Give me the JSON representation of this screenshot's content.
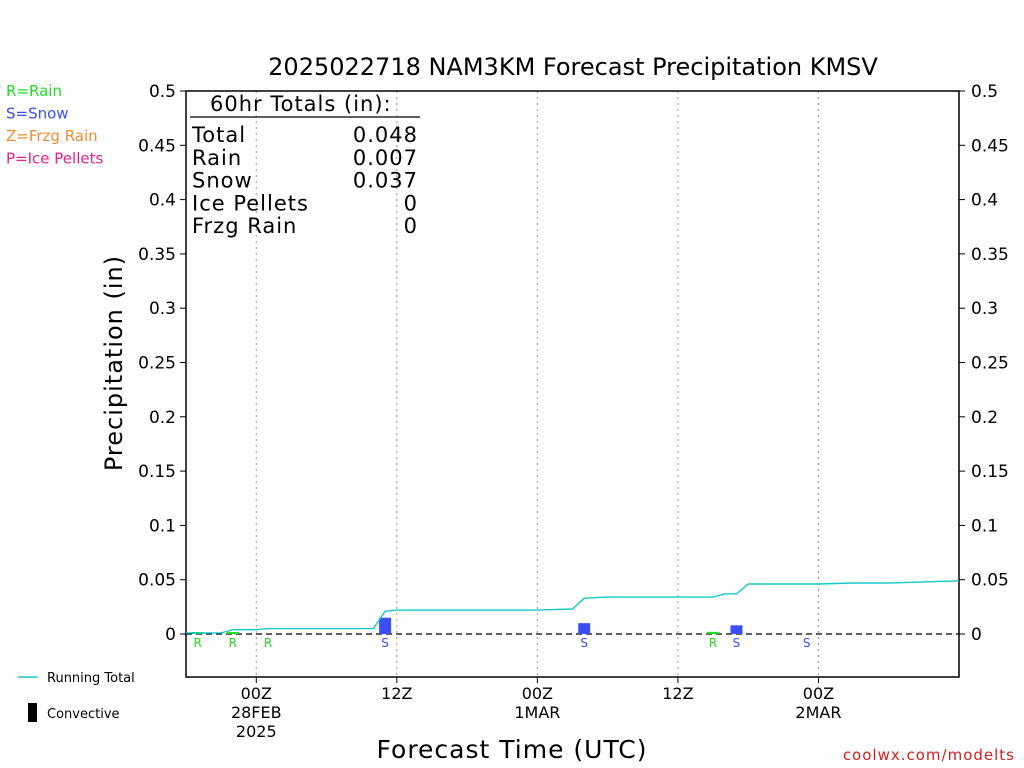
{
  "chart_data": {
    "type": "bar",
    "title": "2025022718 NAM3KM Forecast Precipitation KMSV",
    "xlabel": "Forecast Time (UTC)",
    "ylabel": "Precipitation (in)",
    "ylim": [
      0,
      0.5
    ],
    "xlim": [
      -6,
      60
    ],
    "y_ticks": [
      "0",
      "0.05",
      "0.1",
      "0.15",
      "0.2",
      "0.25",
      "0.3",
      "0.35",
      "0.4",
      "0.45",
      "0.5"
    ],
    "x_ticks": [
      {
        "hour": 0,
        "lines": [
          "00Z",
          "28FEB",
          "2025"
        ]
      },
      {
        "hour": 12,
        "lines": [
          "12Z"
        ]
      },
      {
        "hour": 24,
        "lines": [
          "00Z",
          "1MAR"
        ]
      },
      {
        "hour": 36,
        "lines": [
          "12Z"
        ]
      },
      {
        "hour": 48,
        "lines": [
          "00Z",
          "2MAR"
        ]
      }
    ],
    "grid": "vertical-dotted",
    "ptype_legend": [
      {
        "code": "R",
        "text": "R=Rain",
        "color": "#22dd22"
      },
      {
        "code": "S",
        "text": "S=Snow",
        "color": "#3a4ff0"
      },
      {
        "code": "Z",
        "text": "Z=Frzg Rain",
        "color": "#f08a30"
      },
      {
        "code": "P",
        "text": "P=Ice Pellets",
        "color": "#e8208a"
      }
    ],
    "bars": [
      {
        "hour": -5,
        "value": 0.001,
        "type": "R"
      },
      {
        "hour": -2,
        "value": 0.001,
        "type": "R"
      },
      {
        "hour": 11,
        "value": 0.015,
        "type": "S"
      },
      {
        "hour": 28,
        "value": 0.01,
        "type": "S"
      },
      {
        "hour": 39,
        "value": 0.002,
        "type": "R"
      },
      {
        "hour": 41,
        "value": 0.008,
        "type": "S"
      }
    ],
    "ptype_markers": [
      {
        "hour": -5,
        "code": "R"
      },
      {
        "hour": -2,
        "code": "R"
      },
      {
        "hour": 1,
        "code": "R"
      },
      {
        "hour": 11,
        "code": "S"
      },
      {
        "hour": 28,
        "code": "S"
      },
      {
        "hour": 39,
        "code": "R"
      },
      {
        "hour": 41,
        "code": "S"
      },
      {
        "hour": 47,
        "code": "S"
      }
    ],
    "running_total": {
      "name": "Running Total",
      "color": "#19c8c8",
      "x": [
        -6,
        -3,
        -2,
        0,
        1,
        10,
        11,
        12,
        16,
        24,
        27,
        28,
        30,
        36,
        39,
        40,
        41,
        42,
        45,
        48,
        51,
        54,
        57,
        60
      ],
      "y": [
        0.001,
        0.001,
        0.004,
        0.004,
        0.005,
        0.005,
        0.021,
        0.022,
        0.022,
        0.022,
        0.023,
        0.033,
        0.034,
        0.034,
        0.034,
        0.037,
        0.037,
        0.046,
        0.046,
        0.046,
        0.047,
        0.047,
        0.048,
        0.049
      ]
    },
    "totals_box": {
      "heading": "60hr Totals (in):",
      "rows": [
        {
          "label": "Total",
          "value": "0.048"
        },
        {
          "label": "Rain",
          "value": "0.007"
        },
        {
          "label": "Snow",
          "value": "0.037"
        },
        {
          "label": "Ice Pellets",
          "value": "0"
        },
        {
          "label": "Frzg Rain",
          "value": "0"
        }
      ]
    },
    "bottom_legend": {
      "running_total_label": "Running Total",
      "convective_label": "Convective"
    },
    "credit": "coolwx.com/modelts"
  },
  "colors": {
    "rain": "#22dd22",
    "snow": "#3a4ff0",
    "frzg_rain": "#f08a30",
    "ice_pellets": "#e8208a",
    "running_total": "#19c8c8",
    "credit": "#d02020"
  }
}
